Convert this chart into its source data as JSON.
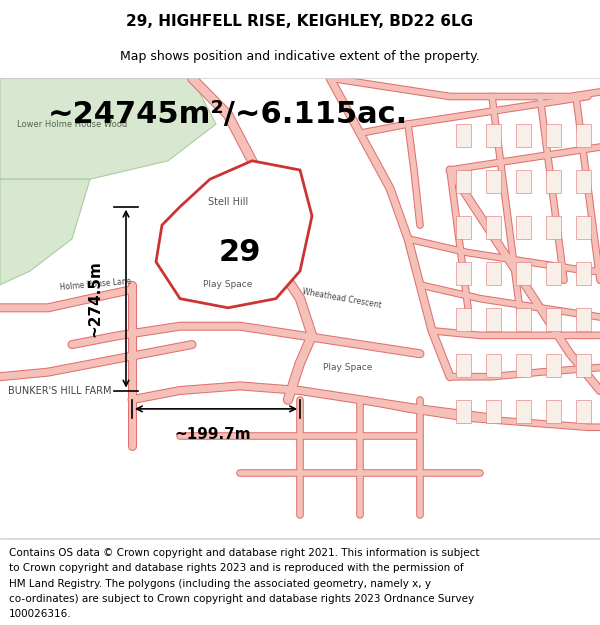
{
  "title": "29, HIGHFELL RISE, KEIGHLEY, BD22 6LG",
  "subtitle": "Map shows position and indicative extent of the property.",
  "area_text": "~24745m²/~6.115ac.",
  "dim1_text": "~274.5m",
  "dim2_text": "~199.7m",
  "label_29": "29",
  "map_bg": "#f0ede8",
  "green_area_color": "#d8e8d0",
  "road_color": "#f5c0b8",
  "road_stroke": "#e07070",
  "property_fill": "#ffffff",
  "property_stroke": "#cc3333",
  "footer_lines": [
    "Contains OS data © Crown copyright and database right 2021. This information is subject",
    "to Crown copyright and database rights 2023 and is reproduced with the permission of",
    "HM Land Registry. The polygons (including the associated geometry, namely x, y",
    "co-ordinates) are subject to Crown copyright and database rights 2023 Ordnance Survey",
    "100026316."
  ],
  "title_fontsize": 11,
  "subtitle_fontsize": 9,
  "area_fontsize": 22,
  "dim_fontsize": 11,
  "label_fontsize": 22,
  "footer_fontsize": 7.5
}
